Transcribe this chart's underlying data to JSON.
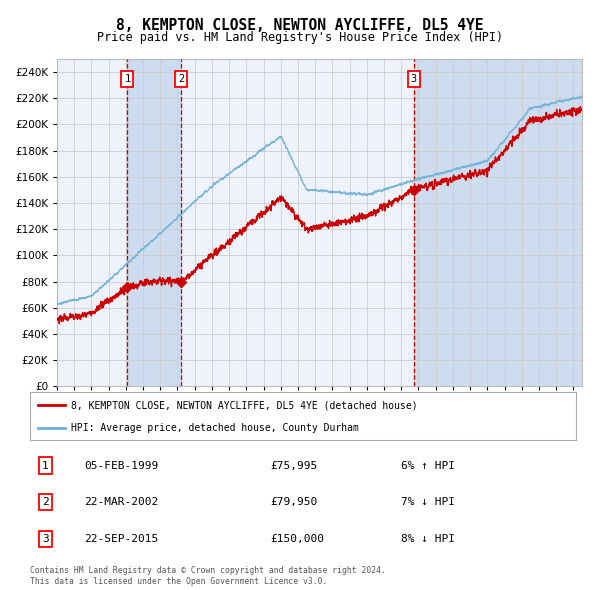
{
  "title": "8, KEMPTON CLOSE, NEWTON AYCLIFFE, DL5 4YE",
  "subtitle": "Price paid vs. HM Land Registry's House Price Index (HPI)",
  "legend_line1": "8, KEMPTON CLOSE, NEWTON AYCLIFFE, DL5 4YE (detached house)",
  "legend_line2": "HPI: Average price, detached house, County Durham",
  "footer1": "Contains HM Land Registry data © Crown copyright and database right 2024.",
  "footer2": "This data is licensed under the Open Government Licence v3.0.",
  "transactions": [
    {
      "num": 1,
      "date": "05-FEB-1999",
      "price": 75995,
      "pct": "6%",
      "dir": "↑"
    },
    {
      "num": 2,
      "date": "22-MAR-2002",
      "price": 79950,
      "pct": "7%",
      "dir": "↓"
    },
    {
      "num": 3,
      "date": "22-SEP-2015",
      "price": 150000,
      "pct": "8%",
      "dir": "↓"
    }
  ],
  "transaction_dates_decimal": [
    1999.09,
    2002.22,
    2015.72
  ],
  "transaction_prices": [
    75995,
    79950,
    150000
  ],
  "hpi_color": "#6baed6",
  "price_color": "#cc0000",
  "grid_color": "#cccccc",
  "plot_bg": "#eef2fa",
  "highlight_bg": "#cddcee",
  "dashed_line_color": "#cc0000",
  "ylim": [
    0,
    250000
  ],
  "xlim_start": 1995.0,
  "xlim_end": 2025.5,
  "fig_width": 6.0,
  "fig_height": 5.9,
  "dpi": 100
}
